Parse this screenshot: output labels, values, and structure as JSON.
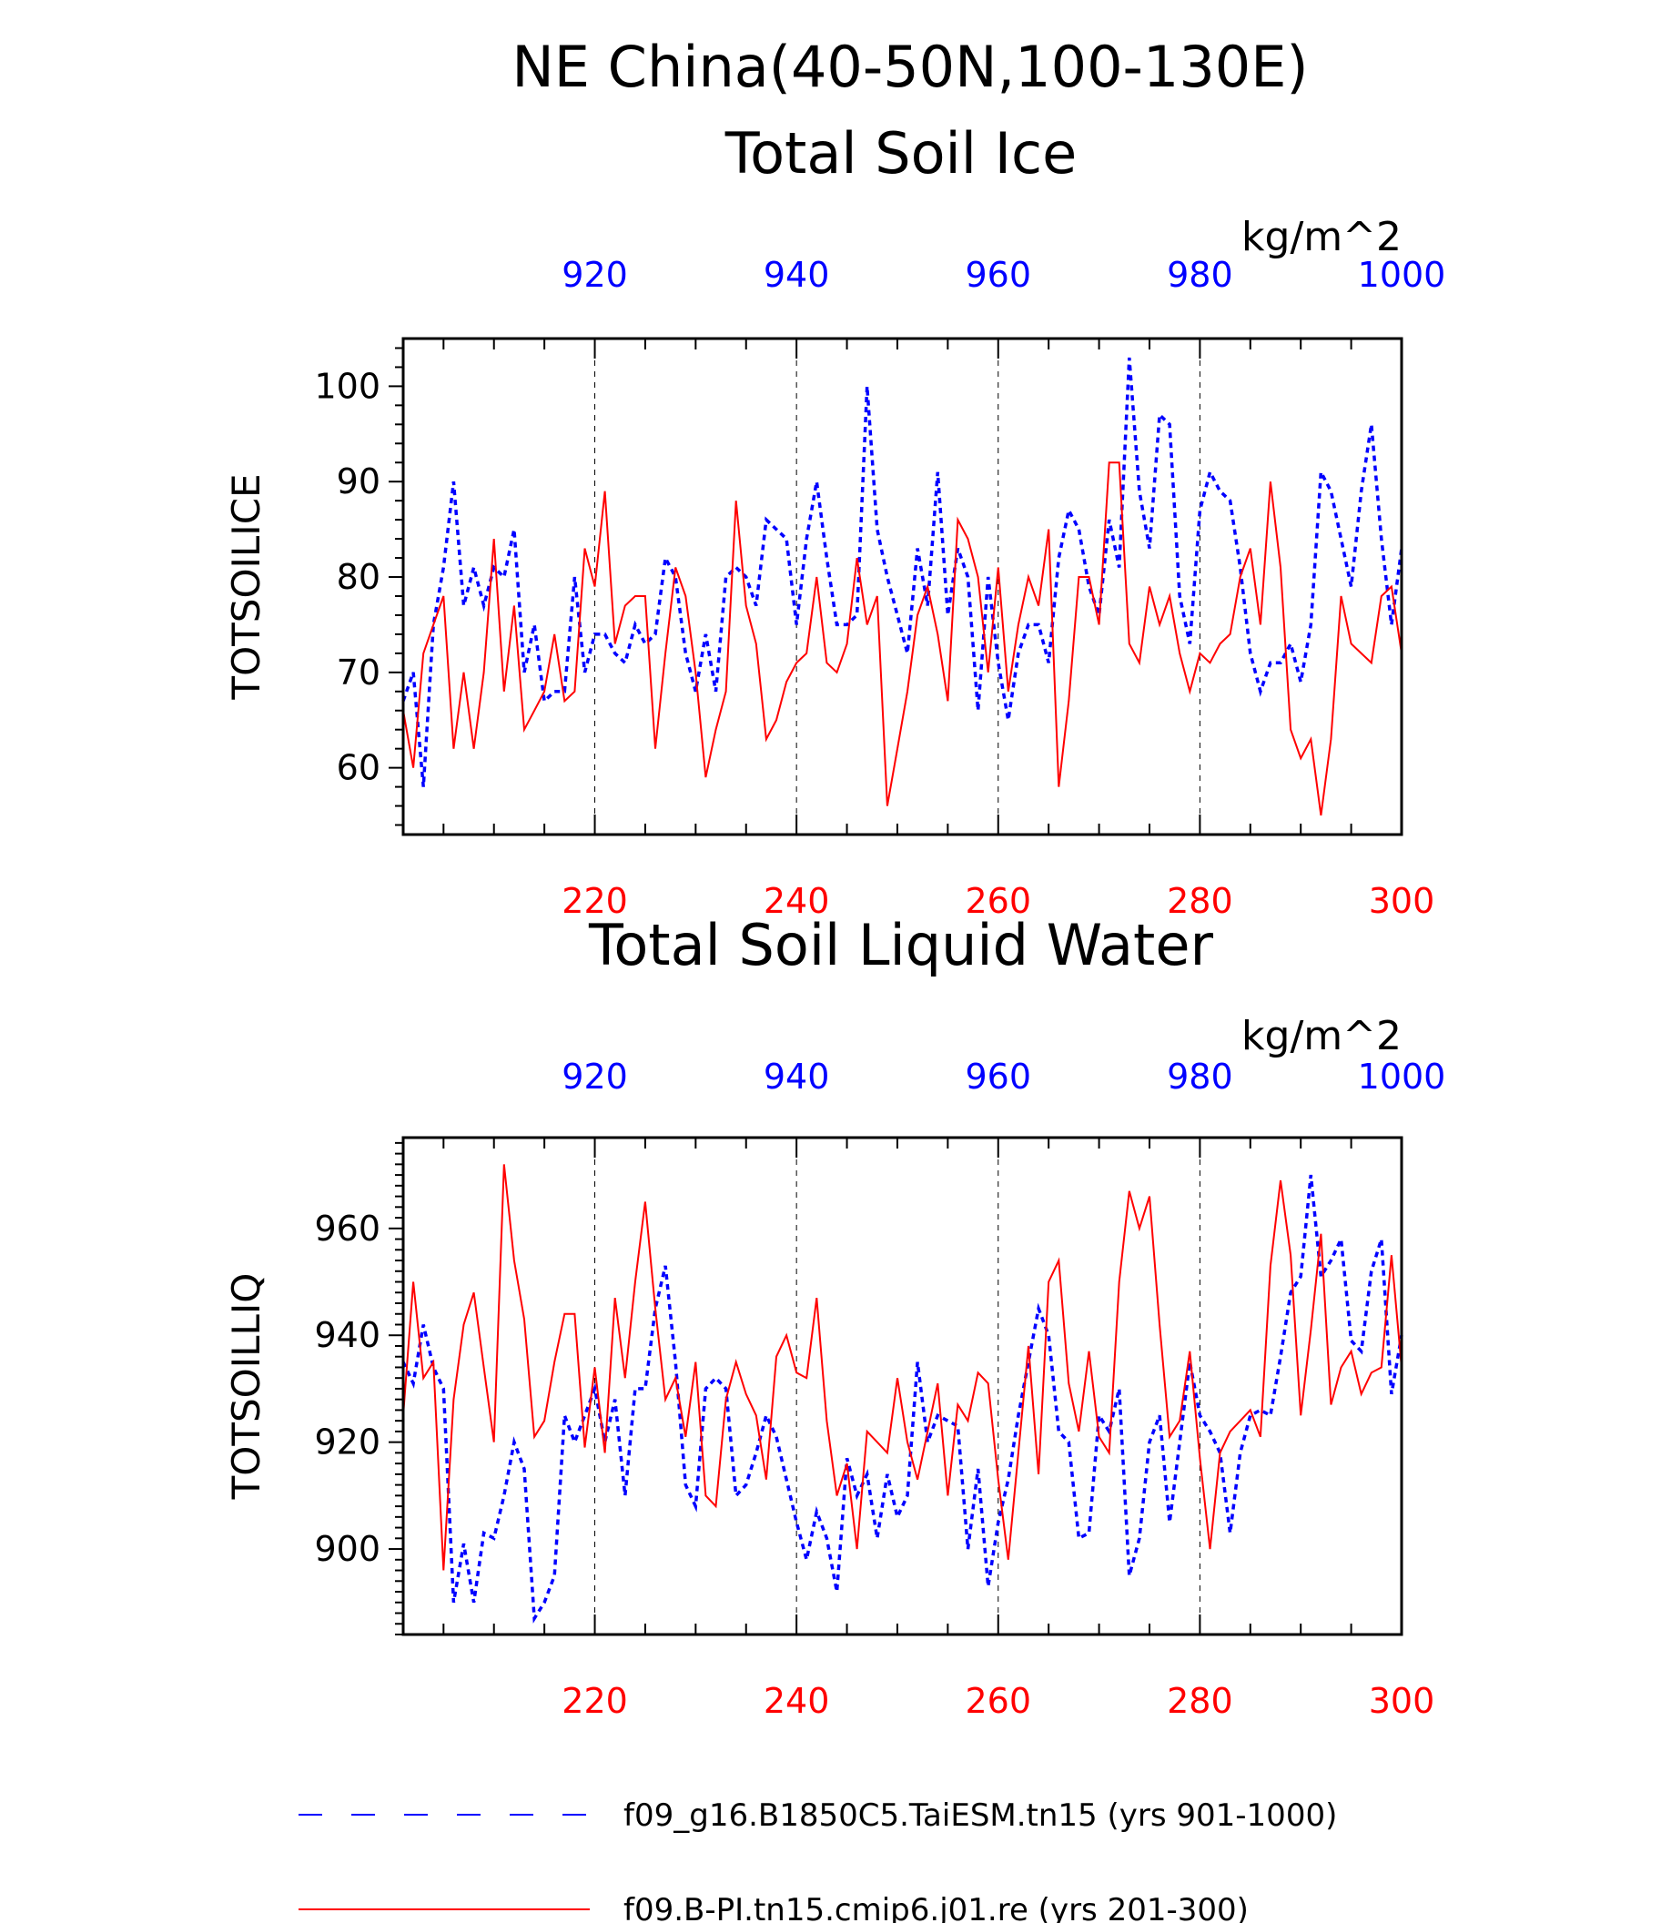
{
  "header": {
    "title": "NE China(40-50N,100-130E)"
  },
  "colors": {
    "blue_series": "#0000ff",
    "red_series": "#ff0000",
    "axes": "#000000"
  },
  "legend": {
    "placement": "bottom",
    "entries": [
      {
        "label": "f09_g16.B1850C5.TaiESM.tn15 (yrs 901-1000)",
        "color": "#0000ff",
        "style": "dashed"
      },
      {
        "label": "f09.B-PI.tn15.cmip6.j01.re (yrs 201-300)",
        "color": "#ff0000",
        "style": "solid"
      }
    ]
  },
  "chart_data": [
    {
      "type": "line",
      "title": "Total Soil Ice",
      "ylabel": "TOTSOILICE",
      "units": "kg/m^2",
      "ylim": [
        53,
        105
      ],
      "yticks": [
        60,
        70,
        80,
        90,
        100
      ],
      "x_bottom": {
        "range": [
          201,
          300
        ],
        "ticks": [
          220,
          240,
          260,
          280,
          300
        ],
        "color": "#ff0000"
      },
      "x_top": {
        "range": [
          901,
          1000
        ],
        "ticks": [
          920,
          940,
          960,
          980,
          1000
        ],
        "color": "#0000ff"
      },
      "vertical_gridlines_at_bottom_x": [
        220,
        240,
        260,
        280
      ],
      "series": [
        {
          "axis": "top",
          "color": "#0000ff",
          "style": "dashed",
          "x_start": 901,
          "values": [
            67,
            70,
            58,
            75,
            81,
            90,
            77,
            81,
            77,
            81,
            80,
            85,
            70,
            75,
            67,
            68,
            68,
            80,
            70,
            74,
            74,
            72,
            71,
            75,
            73,
            74,
            82,
            80,
            72,
            68,
            74,
            68,
            80,
            81,
            80,
            77,
            86,
            85,
            84,
            75,
            84,
            90,
            82,
            75,
            75,
            76,
            100,
            85,
            80,
            76,
            72,
            83,
            77,
            91,
            76,
            83,
            80,
            66,
            80,
            71,
            65,
            72,
            75,
            75,
            71,
            82,
            87,
            85,
            79,
            76,
            86,
            81,
            103,
            89,
            83,
            97,
            96,
            78,
            73,
            87,
            91,
            89,
            88,
            81,
            72,
            68,
            71,
            71,
            73,
            69,
            75,
            91,
            89,
            84,
            79,
            89,
            96,
            84,
            75,
            83
          ]
        },
        {
          "axis": "bottom",
          "color": "#ff0000",
          "style": "solid",
          "x_start": 201,
          "values": [
            66,
            60,
            72,
            75,
            78,
            62,
            70,
            62,
            70,
            84,
            68,
            77,
            64,
            66,
            68,
            74,
            67,
            68,
            83,
            79,
            89,
            73,
            77,
            78,
            78,
            62,
            72,
            81,
            78,
            70,
            59,
            64,
            68,
            88,
            77,
            73,
            63,
            65,
            69,
            71,
            72,
            80,
            71,
            70,
            73,
            82,
            75,
            78,
            56,
            62,
            68,
            76,
            79,
            74,
            67,
            86,
            84,
            80,
            70,
            81,
            68,
            75,
            80,
            77,
            85,
            58,
            67,
            80,
            80,
            75,
            92,
            92,
            73,
            71,
            79,
            75,
            78,
            72,
            68,
            72,
            71,
            73,
            74,
            80,
            83,
            75,
            90,
            81,
            64,
            61,
            63,
            55,
            63,
            78,
            73,
            72,
            71,
            78,
            79,
            72
          ]
        }
      ]
    },
    {
      "type": "line",
      "title": "Total Soil Liquid Water",
      "ylabel": "TOTSOILLIQ",
      "units": "kg/m^2",
      "ylim": [
        884,
        977
      ],
      "yticks": [
        900,
        920,
        940,
        960
      ],
      "x_bottom": {
        "range": [
          201,
          300
        ],
        "ticks": [
          220,
          240,
          260,
          280,
          300
        ],
        "color": "#ff0000"
      },
      "x_top": {
        "range": [
          901,
          1000
        ],
        "ticks": [
          920,
          940,
          960,
          980,
          1000
        ],
        "color": "#0000ff"
      },
      "vertical_gridlines_at_bottom_x": [
        220,
        240,
        260,
        280
      ],
      "series": [
        {
          "axis": "top",
          "color": "#0000ff",
          "style": "dashed",
          "x_start": 901,
          "values": [
            935,
            931,
            942,
            934,
            930,
            890,
            901,
            890,
            903,
            902,
            910,
            920,
            915,
            887,
            890,
            895,
            925,
            920,
            925,
            930,
            920,
            928,
            910,
            930,
            930,
            945,
            953,
            935,
            912,
            908,
            930,
            932,
            930,
            910,
            912,
            918,
            925,
            921,
            913,
            905,
            898,
            907,
            902,
            892,
            917,
            910,
            914,
            902,
            914,
            906,
            910,
            935,
            920,
            925,
            924,
            923,
            900,
            915,
            893,
            905,
            913,
            925,
            935,
            945,
            940,
            922,
            920,
            902,
            903,
            925,
            922,
            930,
            895,
            902,
            920,
            925,
            905,
            920,
            935,
            925,
            922,
            918,
            903,
            918,
            925,
            926,
            925,
            936,
            948,
            951,
            970,
            951,
            954,
            958,
            939,
            937,
            952,
            958,
            929,
            940
          ]
        },
        {
          "axis": "bottom",
          "color": "#ff0000",
          "style": "solid",
          "x_start": 201,
          "values": [
            925,
            950,
            932,
            935,
            896,
            928,
            942,
            948,
            934,
            920,
            972,
            954,
            943,
            921,
            924,
            935,
            944,
            944,
            919,
            934,
            918,
            947,
            932,
            950,
            965,
            945,
            928,
            932,
            921,
            935,
            910,
            908,
            928,
            935,
            929,
            925,
            913,
            936,
            940,
            933,
            932,
            947,
            924,
            910,
            916,
            900,
            922,
            920,
            918,
            932,
            920,
            913,
            922,
            931,
            910,
            927,
            924,
            933,
            931,
            913,
            898,
            918,
            938,
            914,
            950,
            954,
            931,
            922,
            937,
            921,
            918,
            950,
            967,
            960,
            966,
            942,
            921,
            924,
            937,
            917,
            900,
            918,
            922,
            924,
            926,
            921,
            953,
            969,
            955,
            925,
            941,
            959,
            927,
            934,
            937,
            929,
            933,
            934,
            955,
            934
          ]
        }
      ]
    }
  ]
}
